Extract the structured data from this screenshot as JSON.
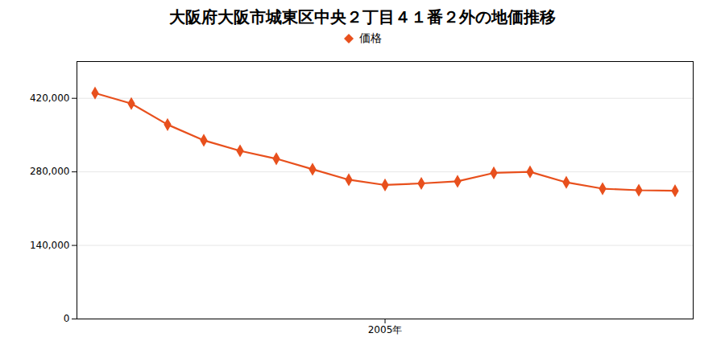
{
  "chart_data": {
    "type": "line",
    "title": "大阪府大阪市城東区中央２丁目４１番２外の地価推移",
    "x": [
      1997,
      1998,
      1999,
      2000,
      2001,
      2002,
      2003,
      2004,
      2005,
      2006,
      2007,
      2008,
      2009,
      2010,
      2011,
      2012,
      2013
    ],
    "series": [
      {
        "name": "価格",
        "color": "#E8501D",
        "marker": "diamond",
        "values": [
          430000,
          410000,
          370000,
          340000,
          320000,
          305000,
          285000,
          265000,
          255000,
          258000,
          262000,
          278000,
          280000,
          260000,
          248000,
          245000,
          244000
        ]
      }
    ],
    "xlim": [
      1996.5,
      2013.5
    ],
    "xticks": [
      {
        "value": 2005,
        "label": "2005年"
      }
    ],
    "ylim": [
      0,
      490000
    ],
    "yticks": [
      0,
      {
        "value": 140000,
        "label": "140,000"
      },
      {
        "value": 280000,
        "label": "280,000"
      },
      {
        "value": 420000,
        "label": "420,000"
      }
    ],
    "grid": "y",
    "legend": "top"
  }
}
